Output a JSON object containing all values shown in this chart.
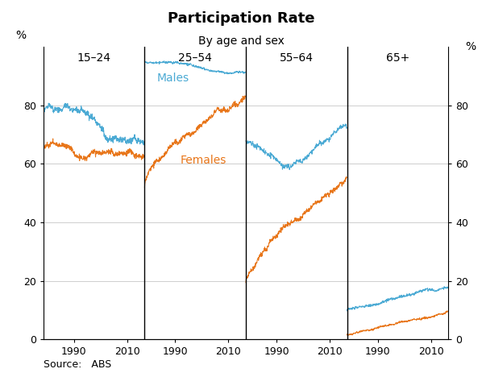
{
  "title": "Participation Rate",
  "subtitle": "By age and sex",
  "source": "Source:   ABS",
  "ylabel_left": "%",
  "ylabel_right": "%",
  "ylim": [
    0,
    100
  ],
  "yticks": [
    0,
    20,
    40,
    60,
    80
  ],
  "panel_labels": [
    "15–24",
    "25–54",
    "55–64",
    "65+"
  ],
  "male_color": "#4BAAD4",
  "female_color": "#E8761A",
  "panel_dividers": [
    0.25,
    0.5,
    0.75
  ],
  "grid_color": "#bbbbbb",
  "n_points": 456,
  "start_year": 1978.5,
  "end_year": 2016.5
}
